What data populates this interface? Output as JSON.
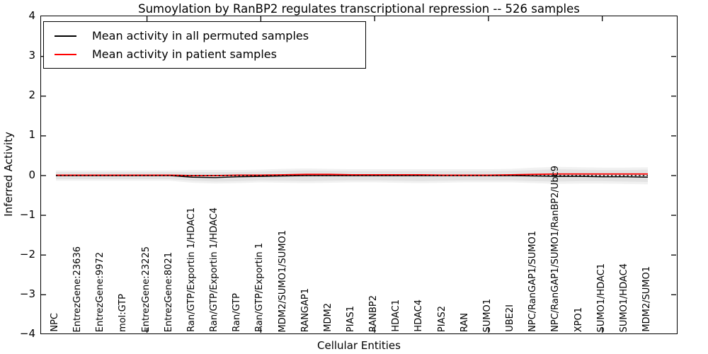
{
  "title": "Sumoylation by RanBP2 regulates transcriptional repression -- 526 samples",
  "legend": [
    {
      "label": "Mean activity in all permuted samples",
      "color": "#000000"
    },
    {
      "label": "Mean activity in patient samples",
      "color": "#ff0000"
    }
  ],
  "axes": {
    "ylabel": "Inferred Activity",
    "xlabel": "Cellular Entities",
    "ytick_labels": [
      "4",
      "3",
      "2",
      "1",
      "0",
      "−1",
      "−2",
      "−3",
      "−4"
    ],
    "yticks": [
      4,
      3,
      2,
      1,
      0,
      -1,
      -2,
      -3,
      -4
    ]
  },
  "chart_data": {
    "type": "line",
    "title": "Sumoylation by RanBP2 regulates transcriptional repression -- 526 samples",
    "xlabel": "Cellular Entities",
    "ylabel": "Inferred Activity",
    "ylim": [
      -4,
      4
    ],
    "yticks": [
      4,
      3,
      2,
      1,
      0,
      -1,
      -2,
      -3,
      -4
    ],
    "grid": false,
    "legend_position": "upper-left",
    "categories": [
      "NPC",
      "EntrezGene:23636",
      "EntrezGene:9972",
      "mol:GTP",
      "EntrezGene:23225",
      "EntrezGene:8021",
      "Ran/GTP/Exportin 1/HDAC1",
      "Ran/GTP/Exportin 1/HDAC4",
      "Ran/GTP",
      "Ran/GTP/Exportin 1",
      "MDM2/SUMO1/SUMO1",
      "RANGAP1",
      "MDM2",
      "PIAS1",
      "RANBP2",
      "HDAC1",
      "HDAC4",
      "PIAS2",
      "RAN",
      "SUMO1",
      "UBE2I",
      "NPC/RanGAP1/SUMO1",
      "NPC/RanGAP1/SUMO1/RanBP2/Ubc9",
      "XPO1",
      "SUMO1/HDAC1",
      "SUMO1/HDAC4",
      "MDM2/SUMO1"
    ],
    "x_major_tick_indices": [
      4,
      9,
      14,
      19,
      24
    ],
    "series": [
      {
        "name": "Mean activity in all permuted samples",
        "color": "#000000",
        "style": "solid",
        "values": [
          0.0,
          0.0,
          0.0,
          0.0,
          0.0,
          0.0,
          -0.04,
          -0.05,
          -0.03,
          -0.02,
          -0.01,
          0.0,
          0.0,
          0.0,
          0.0,
          0.0,
          0.0,
          0.0,
          0.0,
          0.0,
          0.0,
          -0.01,
          -0.02,
          -0.02,
          -0.03,
          -0.03,
          -0.04
        ]
      },
      {
        "name": "Mean activity in patient samples",
        "color": "#ff0000",
        "style": "solid",
        "values": [
          0.01,
          0.01,
          0.01,
          0.01,
          0.01,
          0.01,
          0.0,
          0.0,
          0.01,
          0.01,
          0.02,
          0.03,
          0.03,
          0.02,
          0.02,
          0.02,
          0.02,
          0.01,
          0.01,
          0.01,
          0.02,
          0.03,
          0.04,
          0.04,
          0.04,
          0.04,
          0.04
        ]
      }
    ],
    "zero_line": {
      "value": 0,
      "color": "#000000",
      "style": "dotted"
    },
    "band_inner": {
      "color": "#e3e3e3",
      "upper": [
        0.09,
        0.09,
        0.09,
        0.09,
        0.09,
        0.09,
        0.09,
        0.09,
        0.09,
        0.1,
        0.12,
        0.13,
        0.12,
        0.11,
        0.11,
        0.11,
        0.11,
        0.11,
        0.11,
        0.11,
        0.12,
        0.14,
        0.16,
        0.15,
        0.14,
        0.14,
        0.15
      ],
      "lower": [
        -0.09,
        -0.09,
        -0.09,
        -0.09,
        -0.09,
        -0.09,
        -0.13,
        -0.15,
        -0.14,
        -0.12,
        -0.13,
        -0.14,
        -0.13,
        -0.12,
        -0.12,
        -0.13,
        -0.14,
        -0.13,
        -0.12,
        -0.12,
        -0.12,
        -0.14,
        -0.15,
        -0.14,
        -0.14,
        -0.15,
        -0.16
      ]
    },
    "band_outer": {
      "color": "#f1f1f1",
      "upper": [
        0.13,
        0.13,
        0.13,
        0.13,
        0.13,
        0.13,
        0.14,
        0.14,
        0.14,
        0.15,
        0.17,
        0.18,
        0.17,
        0.16,
        0.16,
        0.16,
        0.16,
        0.16,
        0.16,
        0.16,
        0.17,
        0.2,
        0.22,
        0.21,
        0.2,
        0.2,
        0.21
      ],
      "lower": [
        -0.13,
        -0.13,
        -0.13,
        -0.13,
        -0.13,
        -0.13,
        -0.18,
        -0.2,
        -0.19,
        -0.17,
        -0.18,
        -0.19,
        -0.18,
        -0.17,
        -0.17,
        -0.18,
        -0.19,
        -0.18,
        -0.17,
        -0.17,
        -0.17,
        -0.19,
        -0.21,
        -0.2,
        -0.2,
        -0.21,
        -0.22
      ]
    }
  }
}
